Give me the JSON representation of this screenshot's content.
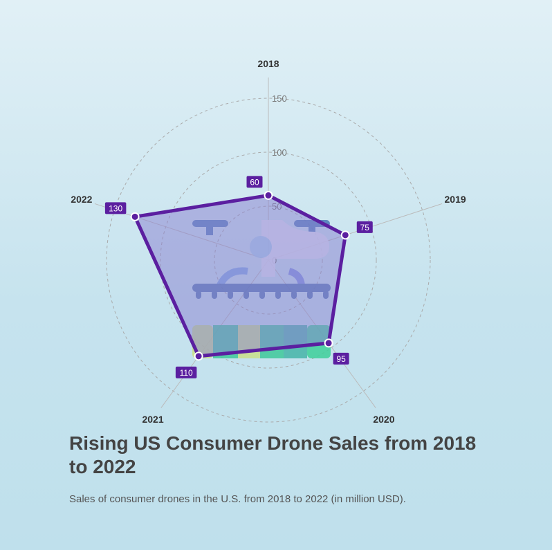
{
  "chart_data": {
    "type": "radar",
    "title": "Rising US Consumer Drone Sales from 2018 to 2022",
    "subtitle": "Sales of consumer drones in the U.S. from 2018 to 2022 (in million USD).",
    "categories": [
      "2018",
      "2019",
      "2020",
      "2021",
      "2022"
    ],
    "values": [
      60,
      75,
      95,
      110,
      130
    ],
    "data_labels": [
      "60",
      "75",
      "95",
      "110",
      "130"
    ],
    "rlim": [
      0,
      150
    ],
    "ticks": [
      "0",
      "50",
      "100",
      "150"
    ],
    "grid": true,
    "colors": {
      "line": "#5b1fa0",
      "fill": "#8a7fd0",
      "label_bg": "#5b1fa0",
      "grid": "#aaaaaa"
    }
  }
}
